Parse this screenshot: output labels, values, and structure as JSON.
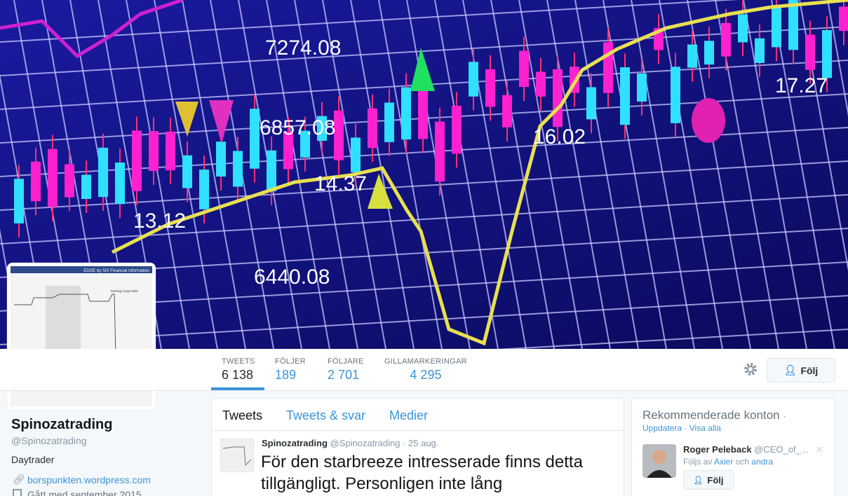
{
  "banner": {
    "labels": [
      "7274.08",
      "6857.08",
      "14.37",
      "16.02",
      "17.27",
      "13.12",
      "6440.08"
    ]
  },
  "avatar": {
    "caption": "EDGE by SIX Financial Information",
    "stock": "Gaming Corps SEK"
  },
  "stats": [
    {
      "label": "TWEETS",
      "value": "6 138"
    },
    {
      "label": "FÖLJER",
      "value": "189"
    },
    {
      "label": "FÖLJARE",
      "value": "2 701"
    },
    {
      "label": "GILLAMARKERINGAR",
      "value": "4 295"
    }
  ],
  "follow_button": "Följ",
  "profile": {
    "name": "Spinozatrading",
    "handle": "@Spinozatrading",
    "bio": "Daytrader",
    "url": "borspunkten.wordpress.com",
    "joined": "Gått med september 2015"
  },
  "tabs": [
    "Tweets",
    "Tweets & svar",
    "Medier"
  ],
  "tweet": {
    "name": "Spinozatrading",
    "handle": "@Spinozatrading",
    "time": "· 25 aug.",
    "text": "För den starbreeze intresserade finns detta tillgängligt. Personligen inte lång"
  },
  "recommended": {
    "title": "Rekommenderade konton",
    "sep": "·",
    "update": "Uppdatera",
    "see_all": "Visa alla",
    "account": {
      "name": "Roger Peleback",
      "handle": "@CEO_of_...",
      "followed_by": "Följs av",
      "follower": "Axier",
      "and": "och",
      "others": "andra",
      "button": "Följ",
      "close": "×"
    }
  }
}
